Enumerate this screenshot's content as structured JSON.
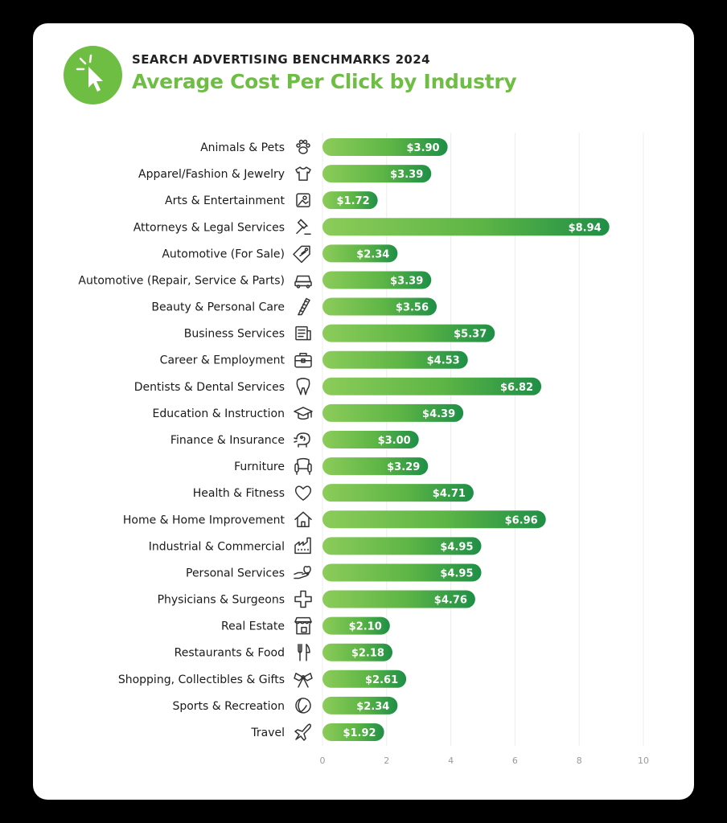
{
  "header": {
    "kicker": "SEARCH ADVERTISING BENCHMARKS 2024",
    "title": "Average Cost Per Click by Industry"
  },
  "colors": {
    "bar_light": "#8ccc5a",
    "bar_mid": "#5db545",
    "bar_dark": "#1f8f46",
    "accent": "#6fbe44"
  },
  "chart_data": {
    "type": "bar",
    "orientation": "horizontal",
    "categories": [
      "Animals & Pets",
      "Apparel/Fashion & Jewelry",
      "Arts & Entertainment",
      "Attorneys & Legal Services",
      "Automotive (For Sale)",
      "Automotive (Repair, Service & Parts)",
      "Beauty & Personal Care",
      "Business Services",
      "Career & Employment",
      "Dentists & Dental Services",
      "Education & Instruction",
      "Finance & Insurance",
      "Furniture",
      "Health & Fitness",
      "Home & Home Improvement",
      "Industrial & Commercial",
      "Personal Services",
      "Physicians & Surgeons",
      "Real Estate",
      "Restaurants & Food",
      "Shopping, Collectibles & Gifts",
      "Sports & Recreation",
      "Travel"
    ],
    "values": [
      3.9,
      3.39,
      1.72,
      8.94,
      2.34,
      3.39,
      3.56,
      5.37,
      4.53,
      6.82,
      4.39,
      3.0,
      3.29,
      4.71,
      6.96,
      4.95,
      4.95,
      4.76,
      2.1,
      2.18,
      2.61,
      2.34,
      1.92
    ],
    "value_labels": [
      "$3.90",
      "$3.39",
      "$1.72",
      "$8.94",
      "$2.34",
      "$3.39",
      "$3.56",
      "$5.37",
      "$4.53",
      "$6.82",
      "$4.39",
      "$3.00",
      "$3.29",
      "$4.71",
      "$6.96",
      "$4.95",
      "$4.95",
      "$4.76",
      "$2.10",
      "$2.18",
      "$2.61",
      "$2.34",
      "$1.92"
    ],
    "icons": [
      "paw-icon",
      "tshirt-icon",
      "picture-icon",
      "gavel-icon",
      "price-tag-icon",
      "car-icon",
      "comb-icon",
      "document-icon",
      "briefcase-icon",
      "tooth-icon",
      "graduation-cap-icon",
      "piggy-bank-icon",
      "armchair-icon",
      "heart-icon",
      "house-icon",
      "factory-icon",
      "helping-hand-icon",
      "medical-cross-icon",
      "storefront-icon",
      "fork-knife-icon",
      "gift-bow-icon",
      "ball-icon",
      "airplane-icon"
    ],
    "xticks": [
      0,
      2,
      4,
      6,
      8,
      10
    ],
    "xlim": [
      0,
      10
    ],
    "grid": true
  }
}
